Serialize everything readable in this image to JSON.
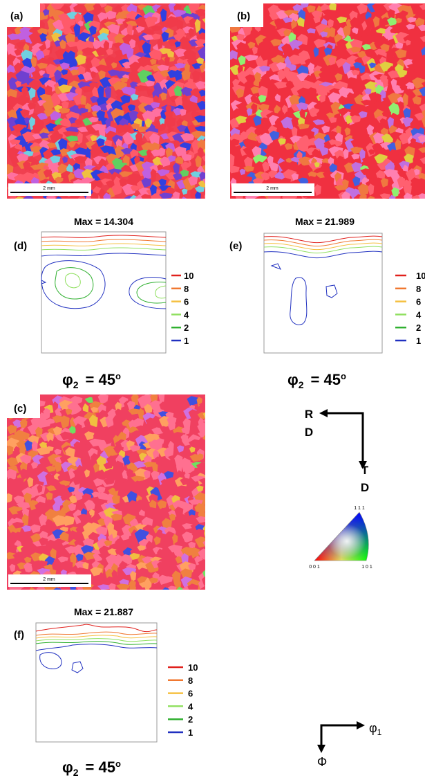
{
  "maps": [
    {
      "label": "(a)",
      "scale_bar": "2 mm"
    },
    {
      "label": "(b)",
      "scale_bar": "2 mm"
    },
    {
      "label": "(c)",
      "scale_bar": "2 mm"
    }
  ],
  "odf_sections": [
    {
      "label": "(d)",
      "max_text": "Max = 14.304",
      "phi": {
        "symbol": "φ",
        "sub": "2",
        "rest": "= 45",
        "sup": "o"
      }
    },
    {
      "label": "(e)",
      "max_text": "Max = 21.989",
      "phi": {
        "symbol": "φ",
        "sub": "2",
        "rest": "= 45",
        "sup": "o"
      }
    },
    {
      "label": "(f)",
      "max_text": "Max = 21.887",
      "phi": {
        "symbol": "φ",
        "sub": "2",
        "rest": "= 45",
        "sup": "o"
      }
    }
  ],
  "legend": [
    {
      "level": 10,
      "color": "#e0201c"
    },
    {
      "level": 8,
      "color": "#f07830"
    },
    {
      "level": 6,
      "color": "#f5c040"
    },
    {
      "level": 4,
      "color": "#90e060"
    },
    {
      "level": 2,
      "color": "#30b030"
    },
    {
      "level": 1,
      "color": "#2030c0"
    }
  ],
  "sample_axes": {
    "rd": [
      "R",
      "D"
    ],
    "td": [
      "T",
      "D"
    ]
  },
  "ipf": {
    "top": "1 1 1",
    "left": "0 0 1",
    "right": "1 0 1"
  },
  "euler_axes": {
    "x": {
      "symbol": "φ",
      "sub": "1"
    },
    "y": "Φ"
  }
}
